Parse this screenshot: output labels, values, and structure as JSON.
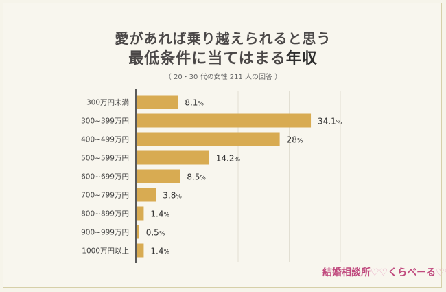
{
  "chart_data": {
    "type": "bar",
    "orientation": "horizontal",
    "title_line1": "愛があれば乗り越えられると思う",
    "title_line2_prefix": "最低条件に当てはまる",
    "title_line2_accent": "年収",
    "subtitle": "（ 20・30 代の女性 211 人の回答 ）",
    "categories": [
      "300万円未満",
      "300~399万円",
      "400~499万円",
      "500~599万円",
      "600~699万円",
      "700~799万円",
      "800~899万円",
      "900~999万円",
      "1000万円以上"
    ],
    "values": [
      8.1,
      34.1,
      28,
      14.2,
      8.5,
      3.8,
      1.4,
      0.5,
      1.4
    ],
    "value_labels": [
      "8.1",
      "34.1",
      "28",
      "14.2",
      "8.5",
      "3.8",
      "1.4",
      "0.5",
      "1.4"
    ],
    "unit": "%",
    "xlim": [
      0,
      40
    ],
    "grid": true,
    "bar_color": "#d8ab52"
  },
  "logo": {
    "text": "結婚相談所",
    "text2": "くらべーる",
    "hearts1": "♡♡",
    "hearts2": "♡♡"
  }
}
